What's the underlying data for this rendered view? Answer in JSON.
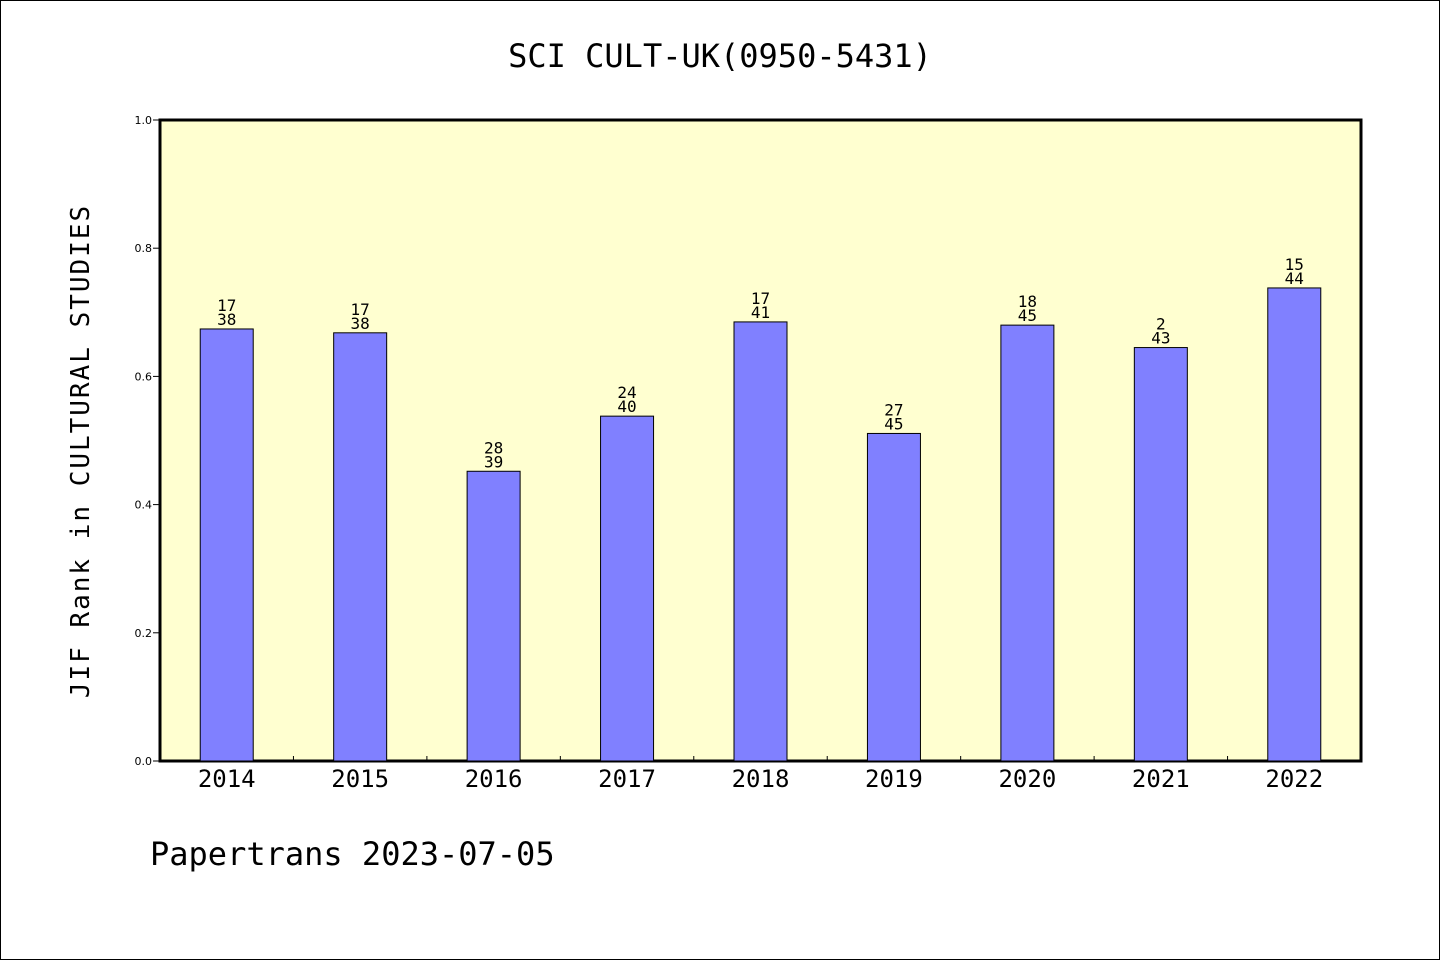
{
  "chart_data": {
    "type": "bar",
    "title": "SCI CULT-UK(0950-5431)",
    "ylabel": "JIF Rank in CULTURAL STUDIES",
    "xlabel": "",
    "categories": [
      "2014",
      "2015",
      "2016",
      "2017",
      "2018",
      "2019",
      "2020",
      "2021",
      "2022"
    ],
    "values": [
      0.674,
      0.668,
      0.452,
      0.538,
      0.685,
      0.511,
      0.68,
      0.645,
      0.738
    ],
    "rank_labels": [
      [
        "17",
        "38"
      ],
      [
        "17",
        "38"
      ],
      [
        "28",
        "39"
      ],
      [
        "24",
        "40"
      ],
      [
        "17",
        "41"
      ],
      [
        "27",
        "45"
      ],
      [
        "18",
        "45"
      ],
      [
        "2",
        "43"
      ],
      [
        "15",
        "44"
      ]
    ],
    "ylim": [
      0,
      1.0
    ],
    "yticks": [
      "0.0",
      "0.2",
      "0.4",
      "0.6",
      "0.8",
      "1.0"
    ],
    "grid": false,
    "colors": {
      "bar": "#8080ff",
      "plot_background": "#ffffd0",
      "axis": "#000000"
    }
  },
  "footer": "Papertrans 2023-07-05"
}
